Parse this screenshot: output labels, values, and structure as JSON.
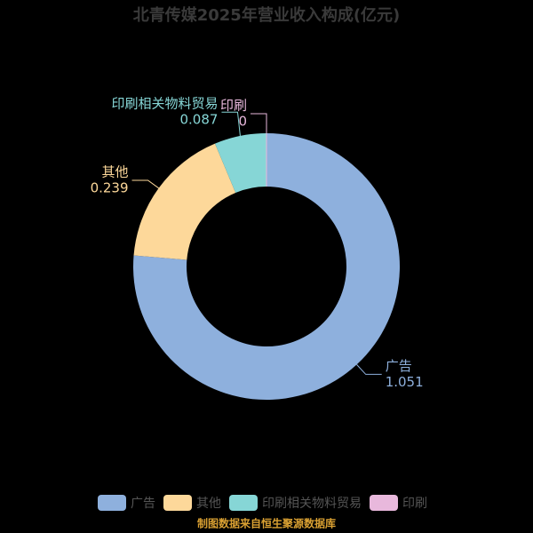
{
  "chart_data": {
    "type": "donut",
    "title": "北青传媒2025年营业收入构成(亿元)",
    "categories": [
      "广告",
      "其他",
      "印刷相关物料贸易",
      "印刷"
    ],
    "values": [
      1.051,
      0.239,
      0.087,
      0
    ],
    "colors": [
      "#8eb0dd",
      "#fdd89a",
      "#86d6d6",
      "#e8b8dc"
    ],
    "source": "制图数据来自恒生聚源数据库"
  }
}
